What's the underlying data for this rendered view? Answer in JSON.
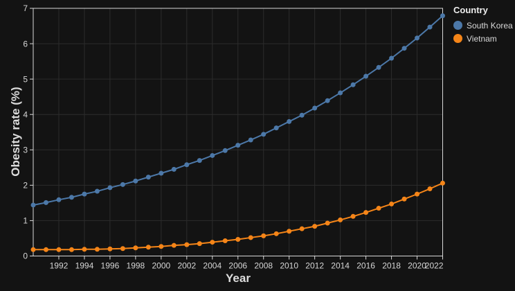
{
  "chart_data": {
    "type": "line",
    "title": "",
    "xlabel": "Year",
    "ylabel": "Obesity rate (%)",
    "legend_title": "Country",
    "legend_position": "top-right",
    "grid": true,
    "xlim": [
      1990,
      2022
    ],
    "ylim": [
      0,
      7
    ],
    "x_ticks": [
      1992,
      1994,
      1996,
      1998,
      2000,
      2002,
      2004,
      2006,
      2008,
      2010,
      2012,
      2014,
      2016,
      2018,
      2020,
      2022
    ],
    "y_ticks": [
      0,
      1,
      2,
      3,
      4,
      5,
      6,
      7
    ],
    "x": [
      1990,
      1991,
      1992,
      1993,
      1994,
      1995,
      1996,
      1997,
      1998,
      1999,
      2000,
      2001,
      2002,
      2003,
      2004,
      2005,
      2006,
      2007,
      2008,
      2009,
      2010,
      2011,
      2012,
      2013,
      2014,
      2015,
      2016,
      2017,
      2018,
      2019,
      2020,
      2021,
      2022
    ],
    "series": [
      {
        "name": "South Korea",
        "color": "#4c78a8",
        "values": [
          1.44,
          1.51,
          1.59,
          1.66,
          1.75,
          1.83,
          1.93,
          2.02,
          2.12,
          2.23,
          2.34,
          2.45,
          2.58,
          2.7,
          2.84,
          2.98,
          3.13,
          3.28,
          3.44,
          3.62,
          3.8,
          3.98,
          4.18,
          4.39,
          4.61,
          4.84,
          5.08,
          5.33,
          5.59,
          5.87,
          6.16,
          6.47,
          6.79
        ]
      },
      {
        "name": "Vietnam",
        "color": "#f58518",
        "values": [
          0.18,
          0.18,
          0.18,
          0.18,
          0.19,
          0.19,
          0.2,
          0.21,
          0.23,
          0.25,
          0.27,
          0.3,
          0.32,
          0.35,
          0.39,
          0.43,
          0.47,
          0.52,
          0.57,
          0.63,
          0.7,
          0.77,
          0.84,
          0.93,
          1.02,
          1.12,
          1.23,
          1.35,
          1.47,
          1.61,
          1.75,
          1.9,
          2.06
        ]
      }
    ]
  },
  "theme": {
    "background": "#131313",
    "grid_color": "#2c2c2c",
    "spine_color": "#d9d9d9",
    "tick_label_color": "#d6d6d6",
    "axis_title_color": "#dcdcdc"
  }
}
